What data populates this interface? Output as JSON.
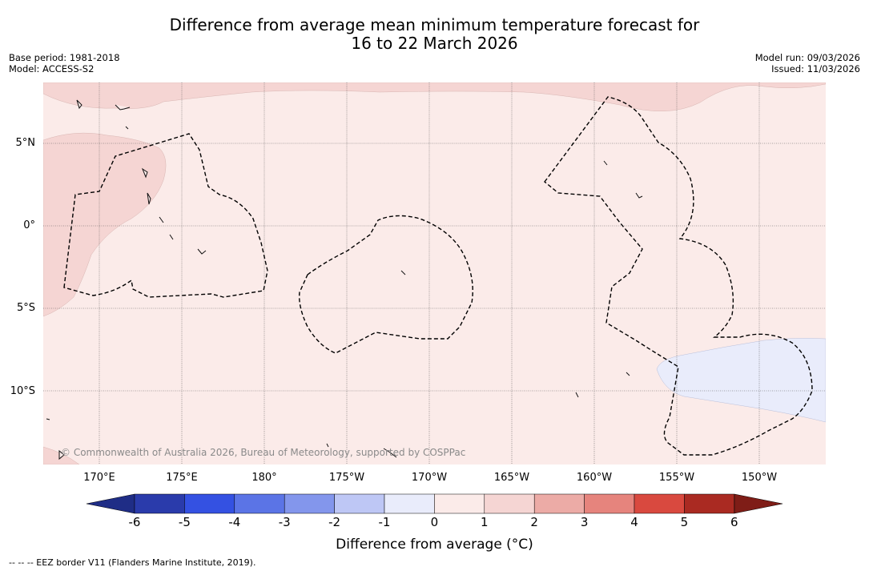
{
  "title": {
    "line1": "Difference from average mean minimum temperature forecast for",
    "line2": "16 to 22 March 2026"
  },
  "meta_left": {
    "base_period": "Base period: 1981-2018",
    "model": "Model: ACCESS-S2"
  },
  "meta_right": {
    "model_run": "Model run: 09/03/2026",
    "issued": "Issued: 11/03/2026"
  },
  "map": {
    "lat_labels": [
      "5°N",
      "0°",
      "5°S",
      "10°S"
    ],
    "lon_labels": [
      "170°E",
      "175°E",
      "180°",
      "175°W",
      "170°W",
      "165°W",
      "160°W",
      "155°W",
      "150°W"
    ],
    "copyright": "© Commonwealth of Australia 2026, Bureau of Meteorology, supported by COSPPac",
    "colors": {
      "anomaly_0_1": "#fbebe9",
      "anomaly_1_2": "#f5d5d3",
      "anomaly_m1_0": "#e9ecfb"
    }
  },
  "colorbar": {
    "ticks": [
      "-6",
      "-5",
      "-4",
      "-3",
      "-2",
      "-1",
      "0",
      "1",
      "2",
      "3",
      "4",
      "5",
      "6"
    ],
    "label": "Difference from average (°C)",
    "colors": [
      "#2a3bab",
      "#3451e2",
      "#5b74e6",
      "#8396ec",
      "#bec7f5",
      "#e9ecfb",
      "#fbebe9",
      "#f5d5d3",
      "#ecaba6",
      "#e6847d",
      "#d9493f",
      "#aa2a22"
    ],
    "under_color": "#1f2d86",
    "over_color": "#7f1d17"
  },
  "legend_note": "--  --  -- EEZ border V11 (Flanders Marine Institute, 2019)."
}
